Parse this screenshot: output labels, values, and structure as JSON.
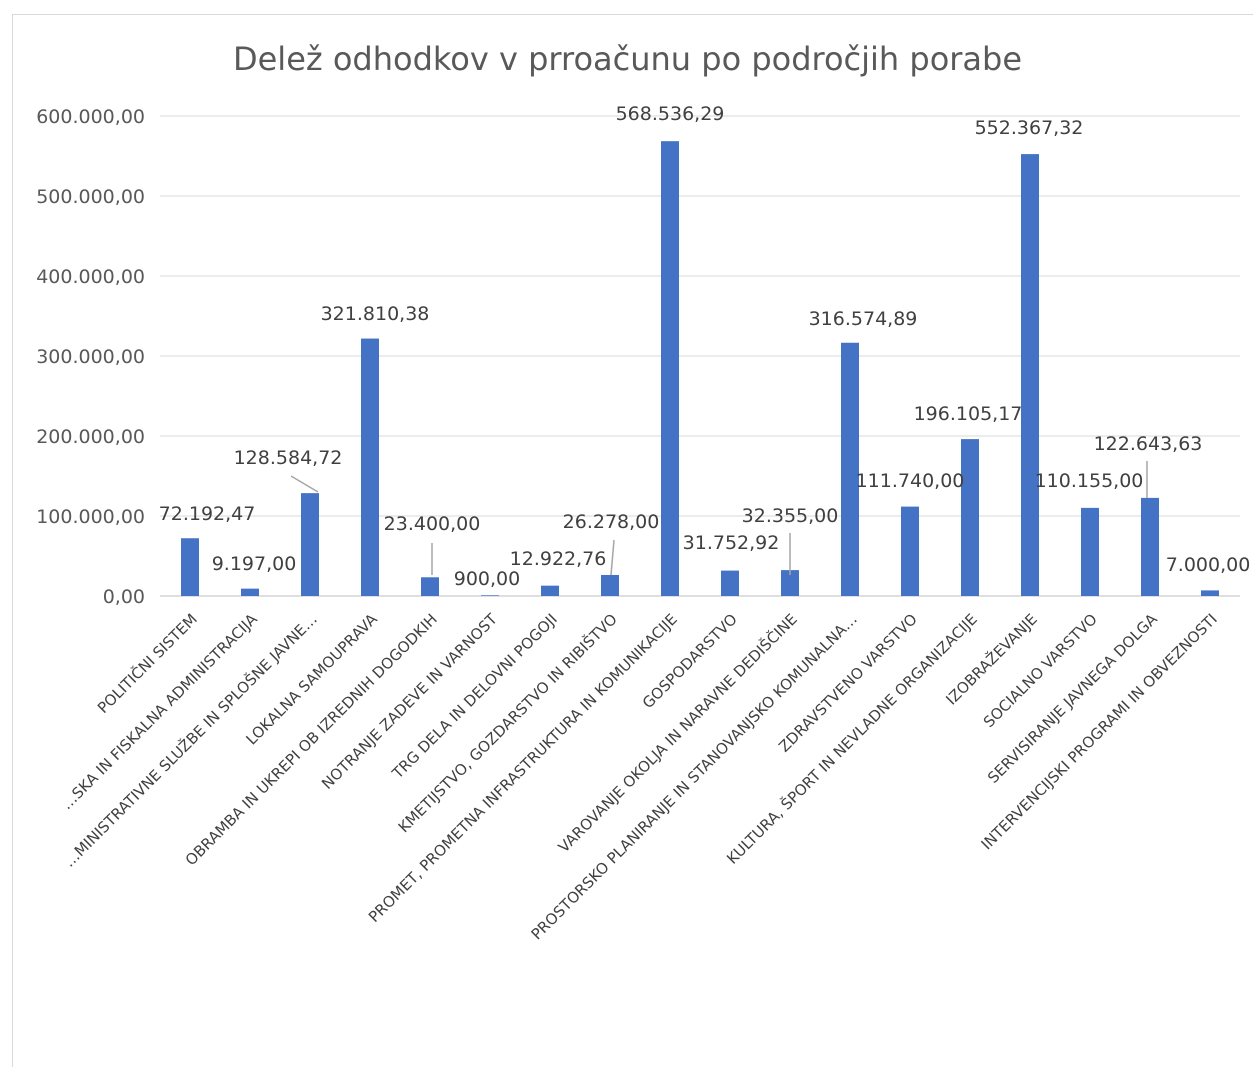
{
  "chart_data": {
    "type": "bar",
    "title": "Delež odhodkov v prroačunu po področjih porabe",
    "xlabel": "",
    "ylabel": "",
    "ylim": [
      0,
      600000
    ],
    "yticks": [
      "0,00",
      "100.000,00",
      "200.000,00",
      "300.000,00",
      "400.000,00",
      "500.000,00",
      "600.000,00"
    ],
    "grid": true,
    "bar_color": "#4472c4",
    "categories": [
      "POLITIČNI SISTEM",
      "…SKA IN FISKALNA ADMINISTRACIJA",
      "…MINISTRATIVNE SLUŽBE IN SPLOŠNE JAVNE…",
      "LOKALNA SAMOUPRAVA",
      "OBRAMBA IN UKREPI OB IZREDNIH DOGODKIH",
      "NOTRANJE ZADEVE IN VARNOST",
      "TRG DELA IN DELOVNI POGOJI",
      "KMETIJSTVO, GOZDARSTVO IN RIBIŠTVO",
      "PROMET, PROMETNA INFRASTRUKTURA IN KOMUNIKACIJE",
      "GOSPODARSTVO",
      "VAROVANJE OKOLJA IN NARAVNE DEDIŠČINE",
      "PROSTORSKO PLANIRANJE IN STANOVANJSKO KOMUNALNA…",
      "ZDRAVSTVENO VARSTVO",
      "KULTURA, ŠPORT IN NEVLADNE ORGANIZACIJE",
      "IZOBRAŽEVANJE",
      "SOCIALNO VARSTVO",
      "SERVISIRANJE JAVNEGA DOLGA",
      "INTERVENCIJSKI PROGRAMI IN OBVEZNOSTI"
    ],
    "values": [
      72192.47,
      9197.0,
      128584.72,
      321810.38,
      23400.0,
      900.0,
      12922.76,
      26278.0,
      568536.29,
      31752.92,
      32355.0,
      316574.89,
      111740.0,
      196105.17,
      552367.32,
      110155.0,
      122643.63,
      7000.0
    ],
    "data_labels": [
      "72.192,47",
      "9.197,00",
      "128.584,72",
      "321.810,38",
      "23.400,00",
      "900,00",
      "12.922,76",
      "26.278,00",
      "568.536,29",
      "31.752,92",
      "32.355,00",
      "316.574,89",
      "111.740,00",
      "196.105,17",
      "552.367,32",
      "110.155,00",
      "122.643,63",
      "7.000,00"
    ]
  }
}
